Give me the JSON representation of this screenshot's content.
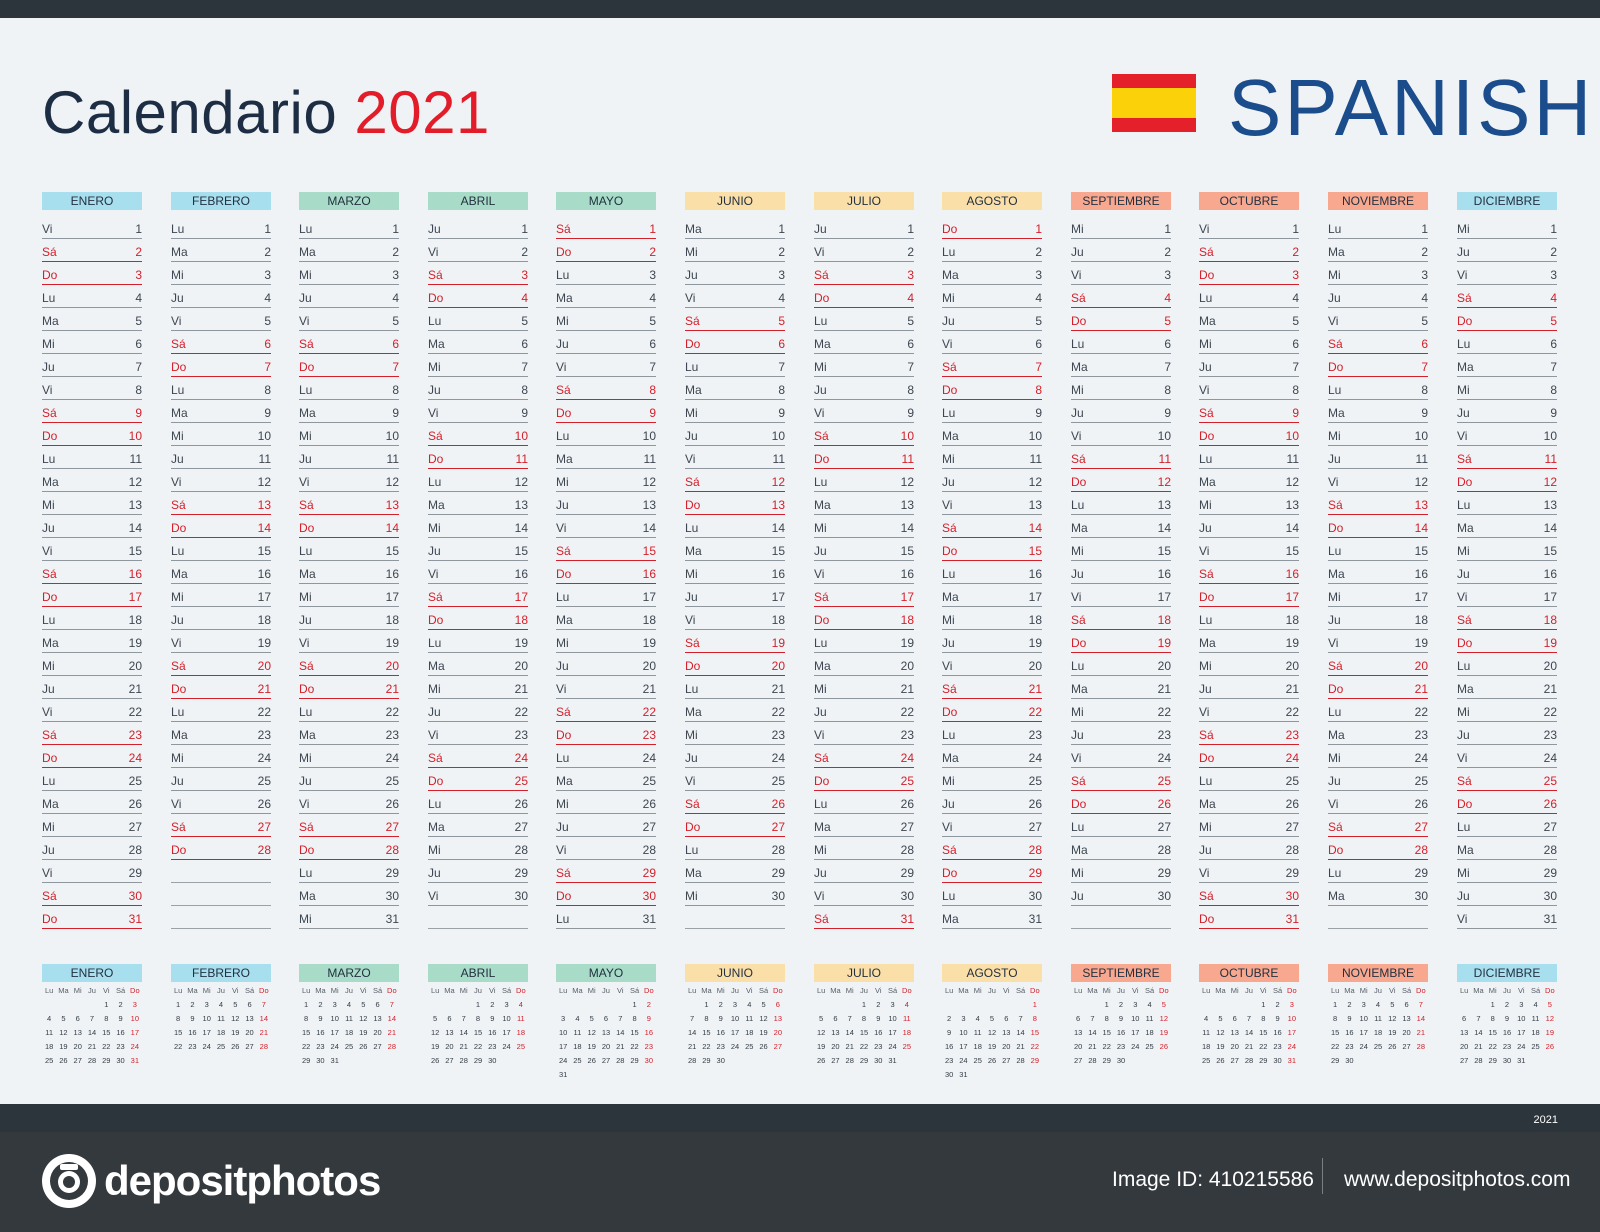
{
  "header": {
    "title_text": "Calendario",
    "title_year": "2021",
    "language": "SPANISH"
  },
  "colors": {
    "pink": "#f9c5cd",
    "blue": "#a8dfee",
    "green": "#a8dcc8",
    "yellow": "#fbdfa9",
    "orange": "#f7a88f"
  },
  "months": [
    {
      "name": "ENERO",
      "color": "#a8dfee",
      "dn": [
        "Vi",
        "Sá",
        "Do",
        "Lu",
        "Ma",
        "Mi",
        "Ju",
        "Vi",
        "Sá",
        "Do",
        "Lu",
        "Ma",
        "Mi",
        "Ju",
        "Vi",
        "Sá",
        "Do",
        "Lu",
        "Ma",
        "Mi",
        "Ju",
        "Vi",
        "Sá",
        "Do",
        "Lu",
        "Ma",
        "Mi",
        "Ju",
        "Vi",
        "Sá",
        "Do"
      ],
      "mini": [
        [
          "",
          "",
          "",
          "",
          "1",
          "2",
          "3"
        ],
        [
          "4",
          "5",
          "6",
          "7",
          "8",
          "9",
          "10"
        ],
        [
          "11",
          "12",
          "13",
          "14",
          "15",
          "16",
          "17"
        ],
        [
          "18",
          "19",
          "20",
          "21",
          "22",
          "23",
          "24"
        ],
        [
          "25",
          "26",
          "27",
          "28",
          "29",
          "30",
          "31"
        ]
      ]
    },
    {
      "name": "FEBRERO",
      "color": "#a8dfee",
      "dn": [
        "Lu",
        "Ma",
        "Mi",
        "Ju",
        "Vi",
        "Sá",
        "Do",
        "Lu",
        "Ma",
        "Mi",
        "Ju",
        "Vi",
        "Sá",
        "Do",
        "Lu",
        "Ma",
        "Mi",
        "Ju",
        "Vi",
        "Sá",
        "Do",
        "Lu",
        "Ma",
        "Mi",
        "Ju",
        "Vi",
        "Sá",
        "Do"
      ],
      "mini": [
        [
          "1",
          "2",
          "3",
          "4",
          "5",
          "6",
          "7"
        ],
        [
          "8",
          "9",
          "10",
          "11",
          "12",
          "13",
          "14"
        ],
        [
          "15",
          "16",
          "17",
          "18",
          "19",
          "20",
          "21"
        ],
        [
          "22",
          "23",
          "24",
          "25",
          "26",
          "27",
          "28"
        ]
      ]
    },
    {
      "name": "MARZO",
      "color": "#a8dcc8",
      "dn": [
        "Lu",
        "Ma",
        "Mi",
        "Ju",
        "Vi",
        "Sá",
        "Do",
        "Lu",
        "Ma",
        "Mi",
        "Ju",
        "Vi",
        "Sá",
        "Do",
        "Lu",
        "Ma",
        "Mi",
        "Ju",
        "Vi",
        "Sá",
        "Do",
        "Lu",
        "Ma",
        "Mi",
        "Ju",
        "Vi",
        "Sá",
        "Do",
        "Lu",
        "Ma",
        "Mi"
      ],
      "mini": [
        [
          "1",
          "2",
          "3",
          "4",
          "5",
          "6",
          "7"
        ],
        [
          "8",
          "9",
          "10",
          "11",
          "12",
          "13",
          "14"
        ],
        [
          "15",
          "16",
          "17",
          "18",
          "19",
          "20",
          "21"
        ],
        [
          "22",
          "23",
          "24",
          "25",
          "26",
          "27",
          "28"
        ],
        [
          "29",
          "30",
          "31",
          "",
          "",
          "",
          ""
        ]
      ]
    },
    {
      "name": "ABRIL",
      "color": "#a8dcc8",
      "dn": [
        "Ju",
        "Vi",
        "Sá",
        "Do",
        "Lu",
        "Ma",
        "Mi",
        "Ju",
        "Vi",
        "Sá",
        "Do",
        "Lu",
        "Ma",
        "Mi",
        "Ju",
        "Vi",
        "Sá",
        "Do",
        "Lu",
        "Ma",
        "Mi",
        "Ju",
        "Vi",
        "Sá",
        "Do",
        "Lu",
        "Ma",
        "Mi",
        "Ju",
        "Vi"
      ],
      "mini": [
        [
          "",
          "",
          "",
          "1",
          "2",
          "3",
          "4"
        ],
        [
          "5",
          "6",
          "7",
          "8",
          "9",
          "10",
          "11"
        ],
        [
          "12",
          "13",
          "14",
          "15",
          "16",
          "17",
          "18"
        ],
        [
          "19",
          "20",
          "21",
          "22",
          "23",
          "24",
          "25"
        ],
        [
          "26",
          "27",
          "28",
          "29",
          "30",
          "",
          ""
        ]
      ]
    },
    {
      "name": "MAYO",
      "color": "#a8dcc8",
      "dn": [
        "Sá",
        "Do",
        "Lu",
        "Ma",
        "Mi",
        "Ju",
        "Vi",
        "Sá",
        "Do",
        "Lu",
        "Ma",
        "Mi",
        "Ju",
        "Vi",
        "Sá",
        "Do",
        "Lu",
        "Ma",
        "Mi",
        "Ju",
        "Vi",
        "Sá",
        "Do",
        "Lu",
        "Ma",
        "Mi",
        "Ju",
        "Vi",
        "Sá",
        "Do",
        "Lu"
      ],
      "mini": [
        [
          "",
          "",
          "",
          "",
          "",
          "1",
          "2"
        ],
        [
          "3",
          "4",
          "5",
          "6",
          "7",
          "8",
          "9"
        ],
        [
          "10",
          "11",
          "12",
          "13",
          "14",
          "15",
          "16"
        ],
        [
          "17",
          "18",
          "19",
          "20",
          "21",
          "22",
          "23"
        ],
        [
          "24",
          "25",
          "26",
          "27",
          "28",
          "29",
          "30"
        ],
        [
          "31",
          "",
          "",
          "",
          "",
          "",
          ""
        ]
      ]
    },
    {
      "name": "JUNIO",
      "color": "#fbdfa9",
      "dn": [
        "Ma",
        "Mi",
        "Ju",
        "Vi",
        "Sá",
        "Do",
        "Lu",
        "Ma",
        "Mi",
        "Ju",
        "Vi",
        "Sá",
        "Do",
        "Lu",
        "Ma",
        "Mi",
        "Ju",
        "Vi",
        "Sá",
        "Do",
        "Lu",
        "Ma",
        "Mi",
        "Ju",
        "Vi",
        "Sá",
        "Do",
        "Lu",
        "Ma",
        "Mi"
      ],
      "mini": [
        [
          "",
          "1",
          "2",
          "3",
          "4",
          "5",
          "6"
        ],
        [
          "7",
          "8",
          "9",
          "10",
          "11",
          "12",
          "13"
        ],
        [
          "14",
          "15",
          "16",
          "17",
          "18",
          "19",
          "20"
        ],
        [
          "21",
          "22",
          "23",
          "24",
          "25",
          "26",
          "27"
        ],
        [
          "28",
          "29",
          "30",
          "",
          "",
          "",
          ""
        ]
      ]
    },
    {
      "name": "JULIO",
      "color": "#fbdfa9",
      "dn": [
        "Ju",
        "Vi",
        "Sá",
        "Do",
        "Lu",
        "Ma",
        "Mi",
        "Ju",
        "Vi",
        "Sá",
        "Do",
        "Lu",
        "Ma",
        "Mi",
        "Ju",
        "Vi",
        "Sá",
        "Do",
        "Lu",
        "Ma",
        "Mi",
        "Ju",
        "Vi",
        "Sá",
        "Do",
        "Lu",
        "Ma",
        "Mi",
        "Ju",
        "Vi",
        "Sá"
      ],
      "mini": [
        [
          "",
          "",
          "",
          "1",
          "2",
          "3",
          "4"
        ],
        [
          "5",
          "6",
          "7",
          "8",
          "9",
          "10",
          "11"
        ],
        [
          "12",
          "13",
          "14",
          "15",
          "16",
          "17",
          "18"
        ],
        [
          "19",
          "20",
          "21",
          "22",
          "23",
          "24",
          "25"
        ],
        [
          "26",
          "27",
          "28",
          "29",
          "30",
          "31",
          ""
        ]
      ]
    },
    {
      "name": "AGOSTO",
      "color": "#fbdfa9",
      "dn": [
        "Do",
        "Lu",
        "Ma",
        "Mi",
        "Ju",
        "Vi",
        "Sá",
        "Do",
        "Lu",
        "Ma",
        "Mi",
        "Ju",
        "Vi",
        "Sá",
        "Do",
        "Lu",
        "Ma",
        "Mi",
        "Ju",
        "Vi",
        "Sá",
        "Do",
        "Lu",
        "Ma",
        "Mi",
        "Ju",
        "Vi",
        "Sá",
        "Do",
        "Lu",
        "Ma"
      ],
      "mini": [
        [
          "",
          "",
          "",
          "",
          "",
          "",
          "1"
        ],
        [
          "2",
          "3",
          "4",
          "5",
          "6",
          "7",
          "8"
        ],
        [
          "9",
          "10",
          "11",
          "12",
          "13",
          "14",
          "15"
        ],
        [
          "16",
          "17",
          "18",
          "19",
          "20",
          "21",
          "22"
        ],
        [
          "23",
          "24",
          "25",
          "26",
          "27",
          "28",
          "29"
        ],
        [
          "30",
          "31",
          "",
          "",
          "",
          "",
          ""
        ]
      ]
    },
    {
      "name": "SEPTIEMBRE",
      "color": "#f7a88f",
      "dn": [
        "Mi",
        "Ju",
        "Vi",
        "Sá",
        "Do",
        "Lu",
        "Ma",
        "Mi",
        "Ju",
        "Vi",
        "Sá",
        "Do",
        "Lu",
        "Ma",
        "Mi",
        "Ju",
        "Vi",
        "Sá",
        "Do",
        "Lu",
        "Ma",
        "Mi",
        "Ju",
        "Vi",
        "Sá",
        "Do",
        "Lu",
        "Ma",
        "Mi",
        "Ju"
      ],
      "mini": [
        [
          "",
          "",
          "1",
          "2",
          "3",
          "4",
          "5"
        ],
        [
          "6",
          "7",
          "8",
          "9",
          "10",
          "11",
          "12"
        ],
        [
          "13",
          "14",
          "15",
          "16",
          "17",
          "18",
          "19"
        ],
        [
          "20",
          "21",
          "22",
          "23",
          "24",
          "25",
          "26"
        ],
        [
          "27",
          "28",
          "29",
          "30",
          "",
          "",
          ""
        ]
      ]
    },
    {
      "name": "OCTUBRE",
      "color": "#f7a88f",
      "dn": [
        "Vi",
        "Sá",
        "Do",
        "Lu",
        "Ma",
        "Mi",
        "Ju",
        "Vi",
        "Sá",
        "Do",
        "Lu",
        "Ma",
        "Mi",
        "Ju",
        "Vi",
        "Sá",
        "Do",
        "Lu",
        "Ma",
        "Mi",
        "Ju",
        "Vi",
        "Sá",
        "Do",
        "Lu",
        "Ma",
        "Mi",
        "Ju",
        "Vi",
        "Sá",
        "Do"
      ],
      "mini": [
        [
          "",
          "",
          "",
          "",
          "1",
          "2",
          "3"
        ],
        [
          "4",
          "5",
          "6",
          "7",
          "8",
          "9",
          "10"
        ],
        [
          "11",
          "12",
          "13",
          "14",
          "15",
          "16",
          "17"
        ],
        [
          "18",
          "19",
          "20",
          "21",
          "22",
          "23",
          "24"
        ],
        [
          "25",
          "26",
          "27",
          "28",
          "29",
          "30",
          "31"
        ]
      ]
    },
    {
      "name": "NOVIEMBRE",
      "color": "#f7a88f",
      "dn": [
        "Lu",
        "Ma",
        "Mi",
        "Ju",
        "Vi",
        "Sá",
        "Do",
        "Lu",
        "Ma",
        "Mi",
        "Ju",
        "Vi",
        "Sá",
        "Do",
        "Lu",
        "Ma",
        "Mi",
        "Ju",
        "Vi",
        "Sá",
        "Do",
        "Lu",
        "Ma",
        "Mi",
        "Ju",
        "Vi",
        "Sá",
        "Do",
        "Lu",
        "Ma"
      ],
      "mini": [
        [
          "1",
          "2",
          "3",
          "4",
          "5",
          "6",
          "7"
        ],
        [
          "8",
          "9",
          "10",
          "11",
          "12",
          "13",
          "14"
        ],
        [
          "15",
          "16",
          "17",
          "18",
          "19",
          "20",
          "21"
        ],
        [
          "22",
          "23",
          "24",
          "25",
          "26",
          "27",
          "28"
        ],
        [
          "29",
          "30",
          "",
          "",
          "",
          "",
          ""
        ]
      ]
    },
    {
      "name": "DICIEMBRE",
      "color": "#a8dfee",
      "dn": [
        "Mi",
        "Ju",
        "Vi",
        "Sá",
        "Do",
        "Lu",
        "Ma",
        "Mi",
        "Ju",
        "Vi",
        "Sá",
        "Do",
        "Lu",
        "Ma",
        "Mi",
        "Ju",
        "Vi",
        "Sá",
        "Do",
        "Lu",
        "Ma",
        "Mi",
        "Ju",
        "Vi",
        "Sá",
        "Do",
        "Lu",
        "Ma",
        "Mi",
        "Ju",
        "Vi"
      ],
      "mini": [
        [
          "",
          "",
          "1",
          "2",
          "3",
          "4",
          "5"
        ],
        [
          "6",
          "7",
          "8",
          "9",
          "10",
          "11",
          "12"
        ],
        [
          "13",
          "14",
          "15",
          "16",
          "17",
          "18",
          "19"
        ],
        [
          "20",
          "21",
          "22",
          "23",
          "24",
          "25",
          "26"
        ],
        [
          "27",
          "28",
          "29",
          "30",
          "31",
          "",
          ""
        ]
      ]
    }
  ],
  "mini_weekdays": [
    "Lu",
    "Ma",
    "Mi",
    "Ju",
    "Vi",
    "Sá",
    "Do"
  ],
  "page_year": "2021",
  "footer": {
    "brand": "depositphotos",
    "image_id": "Image ID: 410215586",
    "site": "www.depositphotos.com"
  }
}
